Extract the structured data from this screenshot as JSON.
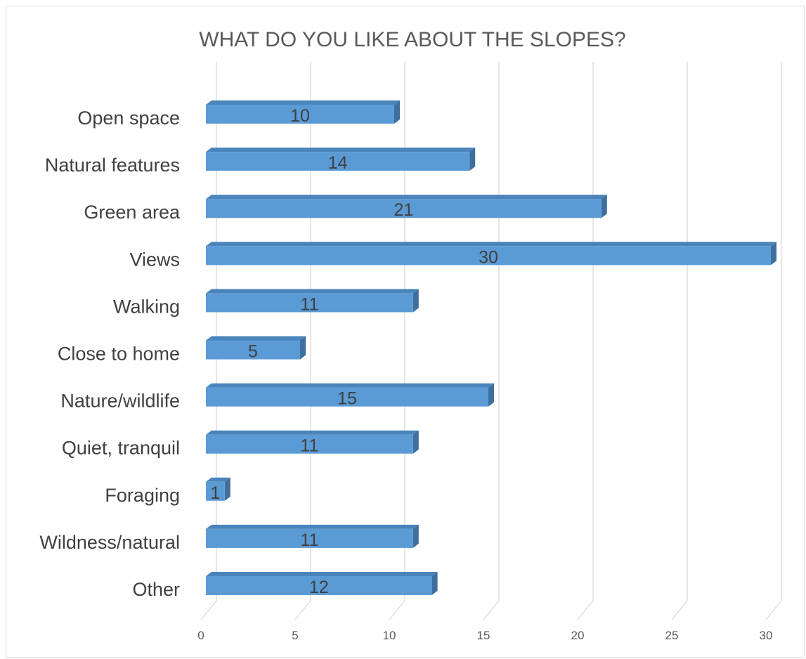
{
  "chart_data": {
    "type": "bar",
    "orientation": "horizontal",
    "title": "WHAT DO YOU LIKE ABOUT THE SLOPES?",
    "xlabel": "",
    "ylabel": "",
    "categories": [
      "Open space",
      "Natural features",
      "Green area",
      "Views",
      "Walking",
      "Close to home",
      "Nature/wildlife",
      "Quiet, tranquil",
      "Foraging",
      "Wildness/natural",
      "Other"
    ],
    "values": [
      10,
      14,
      21,
      30,
      11,
      5,
      15,
      11,
      1,
      11,
      12
    ],
    "xlim": [
      0,
      30
    ],
    "xticks": [
      "0",
      "5",
      "10",
      "15",
      "20",
      "25",
      "30"
    ],
    "grid": true,
    "data_labels": true,
    "style": "3d",
    "colors": {
      "bar_front": "#5b9bd5",
      "bar_top": "#4a84bb",
      "bar_side": "#3e6f9e",
      "grid": "#d9d9d9"
    }
  }
}
